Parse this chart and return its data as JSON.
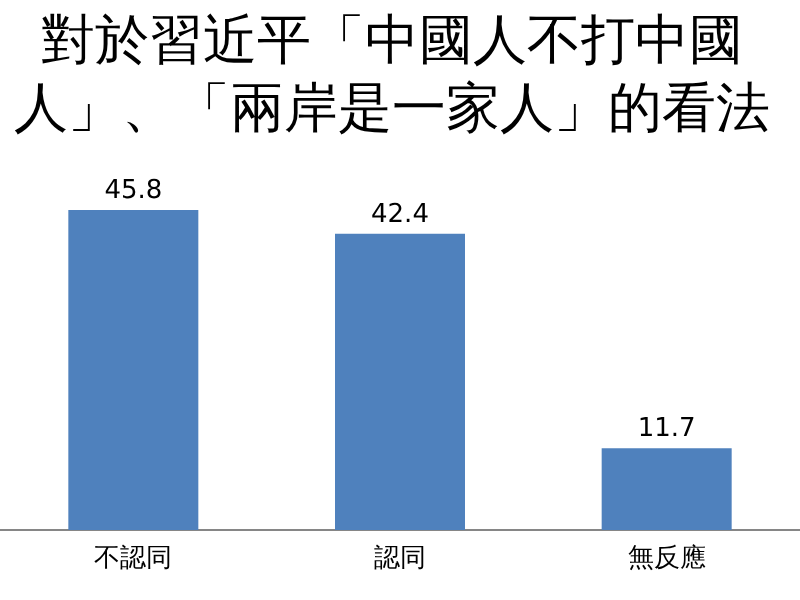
{
  "chart_data": {
    "type": "bar",
    "title": "對於習近平「中國人不打中國人」、「兩岸是一家人」的看法",
    "categories": [
      "不認同",
      "認同",
      "無反應"
    ],
    "values": [
      45.8,
      42.4,
      11.7
    ],
    "color": "#4f81bd",
    "data_labels": true
  }
}
